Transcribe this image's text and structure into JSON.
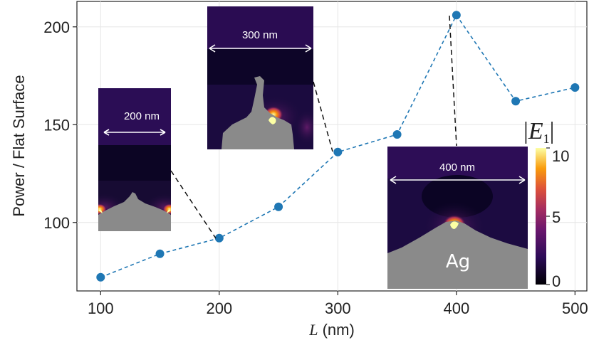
{
  "chart_data": {
    "type": "line",
    "xlabel_var": "L",
    "xlabel_unit": " (nm)",
    "ylabel": "Power / Flat Surface",
    "xlim": [
      80,
      510
    ],
    "ylim": [
      65,
      213
    ],
    "x_ticks": [
      100,
      200,
      300,
      400,
      500
    ],
    "y_ticks": [
      100,
      150,
      200
    ],
    "grid": true,
    "series": [
      {
        "x": [
          100,
          150,
          200,
          250,
          300,
          350,
          400,
          450,
          500
        ],
        "y": [
          72,
          84,
          92,
          108,
          136,
          145,
          206,
          162,
          169
        ],
        "color": "#1f77b4",
        "line_style": "dashed"
      }
    ],
    "insets": [
      {
        "scale_label": "200 nm",
        "linked_x": 200
      },
      {
        "scale_label": "300 nm",
        "linked_x": 300
      },
      {
        "scale_label": "400 nm",
        "linked_x": 400,
        "material_label": "Ag"
      }
    ],
    "colorbar": {
      "title_var": "E",
      "title_sub": "1",
      "ticks": [
        0,
        5,
        10
      ],
      "colormap": "inferno"
    }
  }
}
